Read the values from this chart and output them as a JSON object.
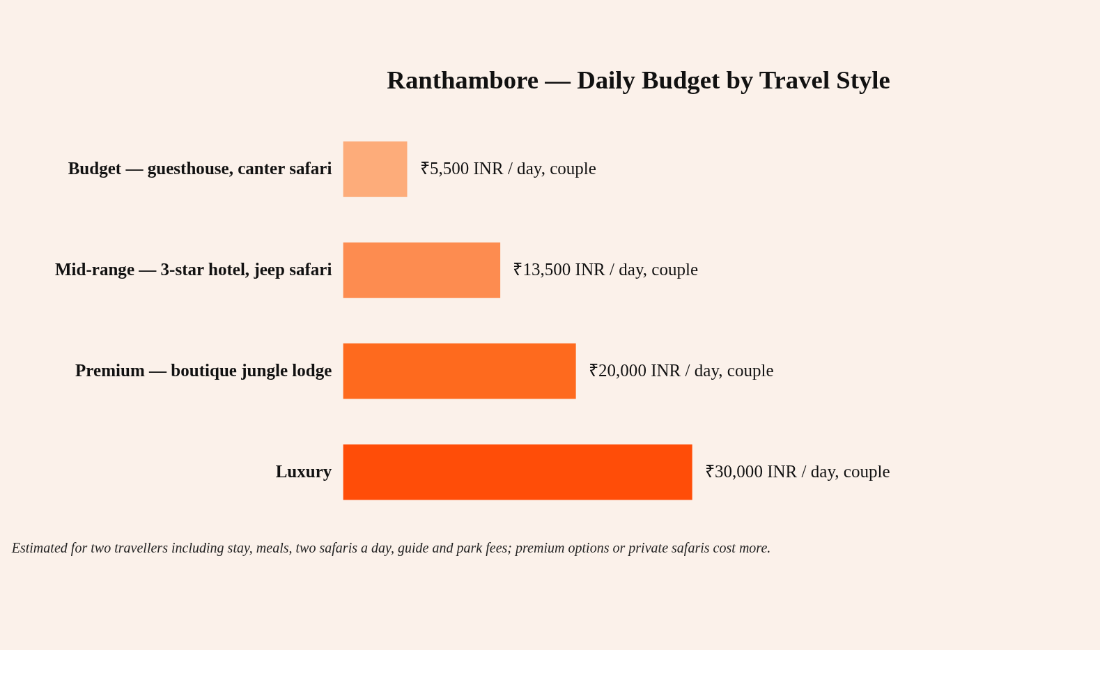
{
  "chart_data": {
    "type": "bar",
    "orientation": "horizontal",
    "title": "Ranthambore — Daily Budget by Travel Style",
    "categories": [
      "Budget — guesthouse, canter safari",
      "Mid-range — 3-star hotel, jeep safari",
      "Premium — boutique jungle lodge",
      "Luxury"
    ],
    "values": [
      5500,
      13500,
      20000,
      30000
    ],
    "colors": [
      "#fdac7a",
      "#fd8c50",
      "#fe6a1e",
      "#ff4d08"
    ],
    "value_labels": [
      "₹5,500 INR / day, couple",
      "₹13,500 INR / day, couple",
      "₹20,000 INR / day, couple",
      "₹30,000 INR / day, couple"
    ],
    "relative": false,
    "annotations": [
      "Estimated for two travellers including stay, meals, two safaris a day, guide and park fees; premium options or private safaris cost more."
    ]
  }
}
